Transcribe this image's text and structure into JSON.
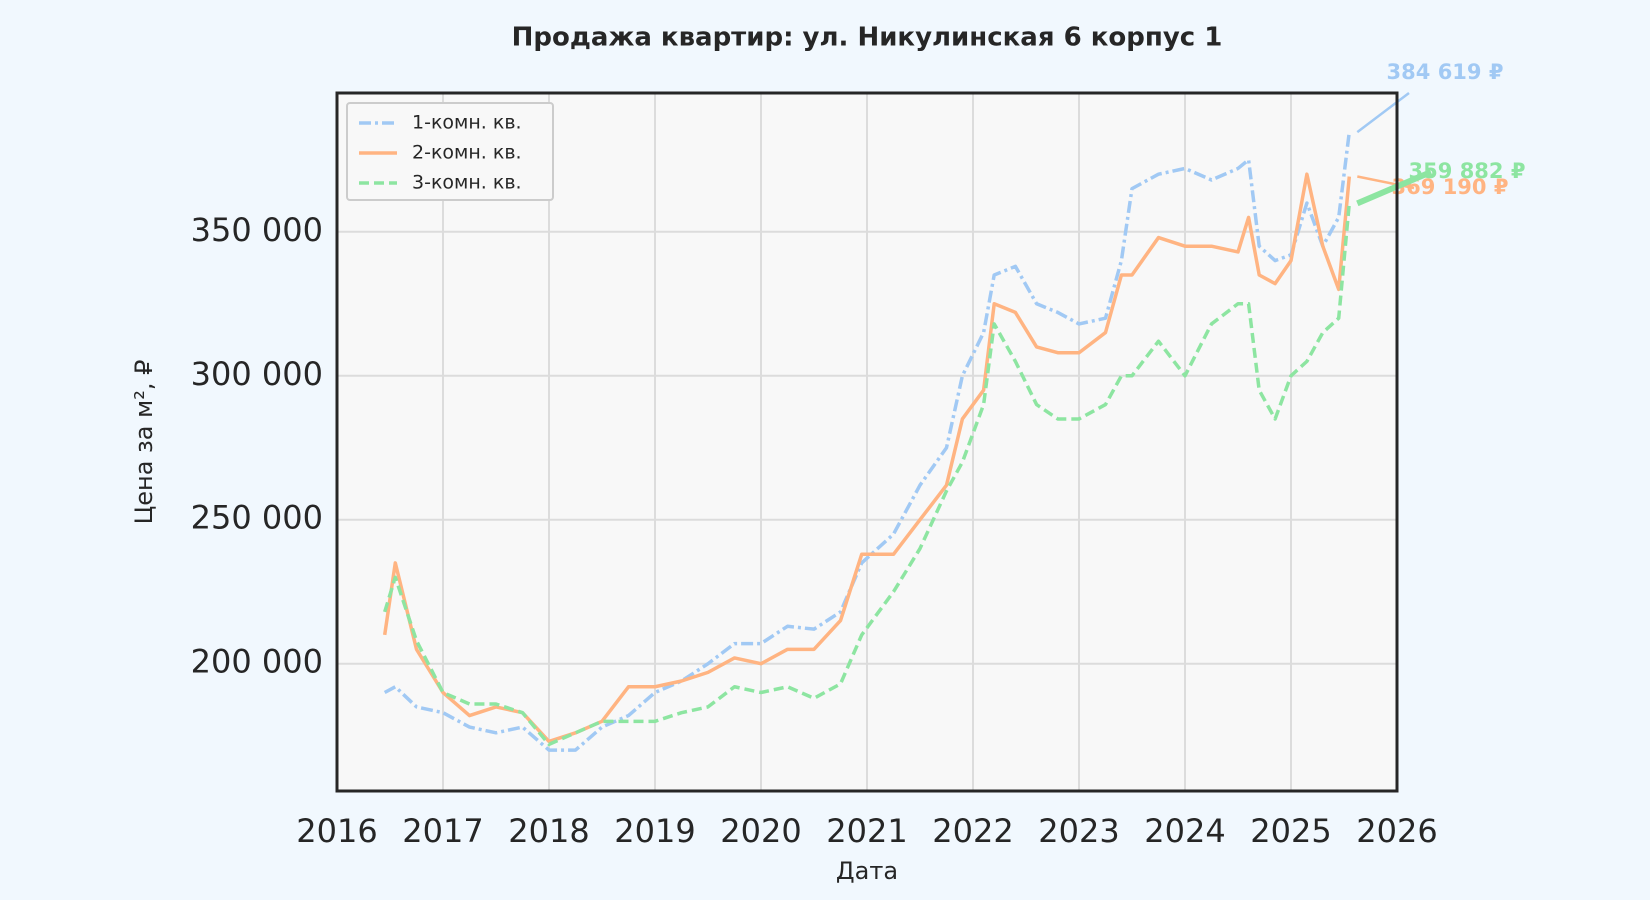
{
  "chart_data": {
    "type": "line",
    "title": "Продажа квартир: ул. Никулинская 6 корпус 1",
    "x_label": "Дата",
    "y_label": "Цена за м², ₽",
    "x": [
      2016.45,
      2016.55,
      2016.75,
      2017.0,
      2017.25,
      2017.5,
      2017.75,
      2018.0,
      2018.25,
      2018.5,
      2018.75,
      2019.0,
      2019.25,
      2019.5,
      2019.75,
      2020.0,
      2020.25,
      2020.5,
      2020.75,
      2020.95,
      2021.25,
      2021.5,
      2021.75,
      2021.9,
      2022.1,
      2022.2,
      2022.4,
      2022.6,
      2022.8,
      2023.0,
      2023.25,
      2023.4,
      2023.5,
      2023.75,
      2024.0,
      2024.25,
      2024.5,
      2024.6,
      2024.7,
      2024.85,
      2025.0,
      2025.15,
      2025.3,
      2025.45,
      2025.55
    ],
    "series": [
      {
        "name": "1-комн. кв.",
        "color": "#a1c9f4",
        "linestyle": "-.",
        "last_label": "384 619 ₽",
        "values": [
          190000,
          192000,
          185000,
          183000,
          178000,
          176000,
          178000,
          170000,
          170000,
          178000,
          182000,
          190000,
          194000,
          200000,
          207000,
          207000,
          213000,
          212000,
          218000,
          235000,
          245000,
          262000,
          275000,
          300000,
          315000,
          335000,
          338000,
          325000,
          322000,
          318000,
          320000,
          340000,
          365000,
          370000,
          372000,
          368000,
          372000,
          375000,
          345000,
          340000,
          342000,
          360000,
          345000,
          355000,
          384619
        ]
      },
      {
        "name": "2-комн. кв.",
        "color": "#ffb482",
        "linestyle": "-",
        "last_label": "369 190 ₽",
        "values": [
          210000,
          235000,
          205000,
          190000,
          182000,
          185000,
          183000,
          173000,
          176000,
          180000,
          192000,
          192000,
          194000,
          197000,
          202000,
          200000,
          205000,
          205000,
          215000,
          238000,
          238000,
          250000,
          262000,
          285000,
          295000,
          325000,
          322000,
          310000,
          308000,
          308000,
          315000,
          335000,
          335000,
          348000,
          345000,
          345000,
          343000,
          355000,
          335000,
          332000,
          340000,
          370000,
          345000,
          330000,
          369190
        ]
      },
      {
        "name": "3-комн. кв.",
        "color": "#8de5a1",
        "linestyle": "--",
        "last_label": "359 882 ₽",
        "values": [
          218000,
          230000,
          208000,
          190000,
          186000,
          186000,
          183000,
          172000,
          176000,
          180000,
          180000,
          180000,
          183000,
          185000,
          192000,
          190000,
          192000,
          188000,
          193000,
          210000,
          225000,
          240000,
          260000,
          270000,
          290000,
          318000,
          305000,
          290000,
          285000,
          285000,
          290000,
          300000,
          300000,
          312000,
          300000,
          318000,
          325000,
          325000,
          295000,
          285000,
          300000,
          305000,
          315000,
          320000,
          359882
        ]
      }
    ],
    "xlim": [
      2016,
      2026
    ],
    "xticks": [
      2016,
      2017,
      2018,
      2019,
      2020,
      2021,
      2022,
      2023,
      2024,
      2025,
      2026
    ],
    "ylim": [
      155800,
      398200
    ],
    "yticks": [
      {
        "value": 200000,
        "label": "200 000"
      },
      {
        "value": 250000,
        "label": "250 000"
      },
      {
        "value": 300000,
        "label": "300 000"
      },
      {
        "value": 350000,
        "label": "350 000"
      }
    ],
    "grid": true,
    "legend": "upper left"
  }
}
